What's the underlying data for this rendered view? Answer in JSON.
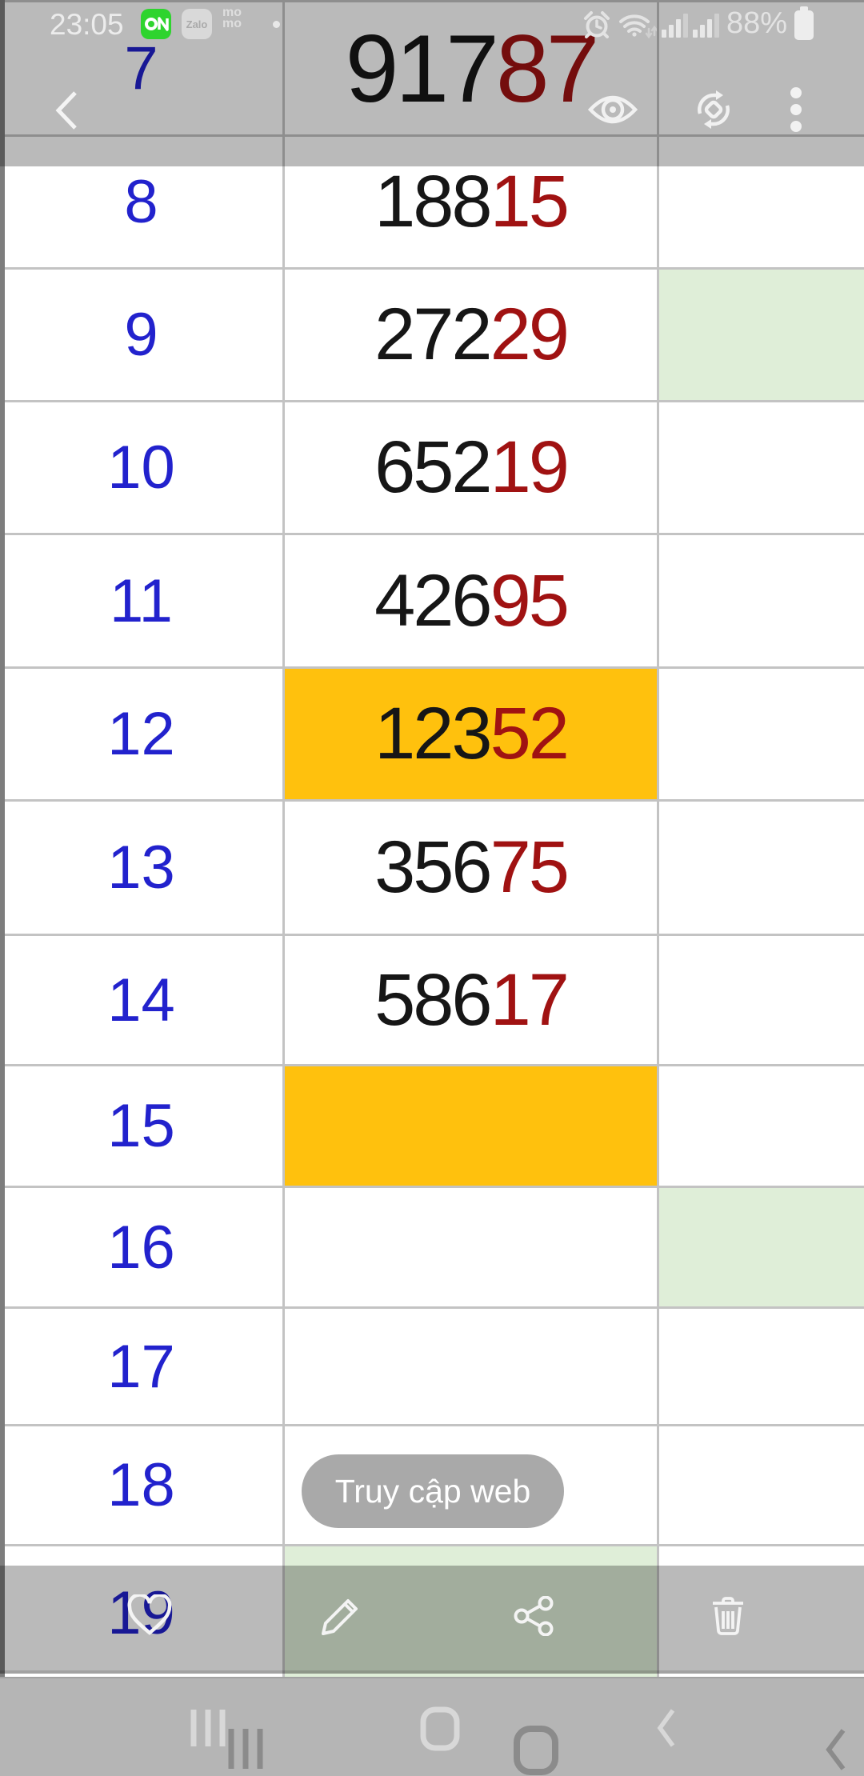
{
  "status_bar": {
    "time": "23:05",
    "battery_pct": "88%",
    "zalo_label": "Zalo",
    "momo_line1": "mo",
    "momo_line2": "mo",
    "icons": [
      "on-app-icon",
      "zalo-app-icon",
      "momo-app-icon",
      "notification-dot",
      "alarm-icon",
      "wifi-icon",
      "signal-bars",
      "signal-bars",
      "battery-icon"
    ]
  },
  "top_toolbar": {
    "icons": [
      "back",
      "eye",
      "sync",
      "overflow-menu"
    ]
  },
  "table": {
    "rows": [
      {
        "label": "7",
        "black": "917",
        "red": "87",
        "big": true
      },
      {
        "label": "8",
        "black": "188",
        "red": "15"
      },
      {
        "label": "9",
        "black": "272",
        "red": "29",
        "right_highlight": "green"
      },
      {
        "label": "10",
        "black": "652",
        "red": "19"
      },
      {
        "label": "11",
        "black": "426",
        "red": "95"
      },
      {
        "label": "12",
        "black": "123",
        "red": "52",
        "mid_highlight": "orange"
      },
      {
        "label": "13",
        "black": "356",
        "red": "75"
      },
      {
        "label": "14",
        "black": "586",
        "red": "17"
      },
      {
        "label": "15",
        "black": "",
        "red": "",
        "mid_highlight": "orange"
      },
      {
        "label": "16",
        "black": "",
        "red": "",
        "right_highlight": "green"
      },
      {
        "label": "17",
        "black": "",
        "red": ""
      },
      {
        "label": "18",
        "black": "",
        "red": ""
      },
      {
        "label": "19",
        "black": "",
        "red": "",
        "mid_highlight": "green"
      }
    ]
  },
  "web_chip": {
    "label": "Truy cập web"
  },
  "bottom_toolbar": {
    "icons": [
      "favorite-heart",
      "edit-pencil",
      "share",
      "delete-trash"
    ]
  },
  "nav_bar": {
    "icons": [
      "recents",
      "home",
      "back"
    ]
  },
  "colors": {
    "blue": "#2222cd",
    "red": "#a01212",
    "digit_black": "#161616",
    "orange": "#ffc10d",
    "green_cell": "#dfeed8",
    "grid": "#c3c3c3",
    "chip_bg": "#a9a9a9",
    "overlay": "rgba(0,0,0,0.27)",
    "nav_bg": "#b5b5b5"
  }
}
